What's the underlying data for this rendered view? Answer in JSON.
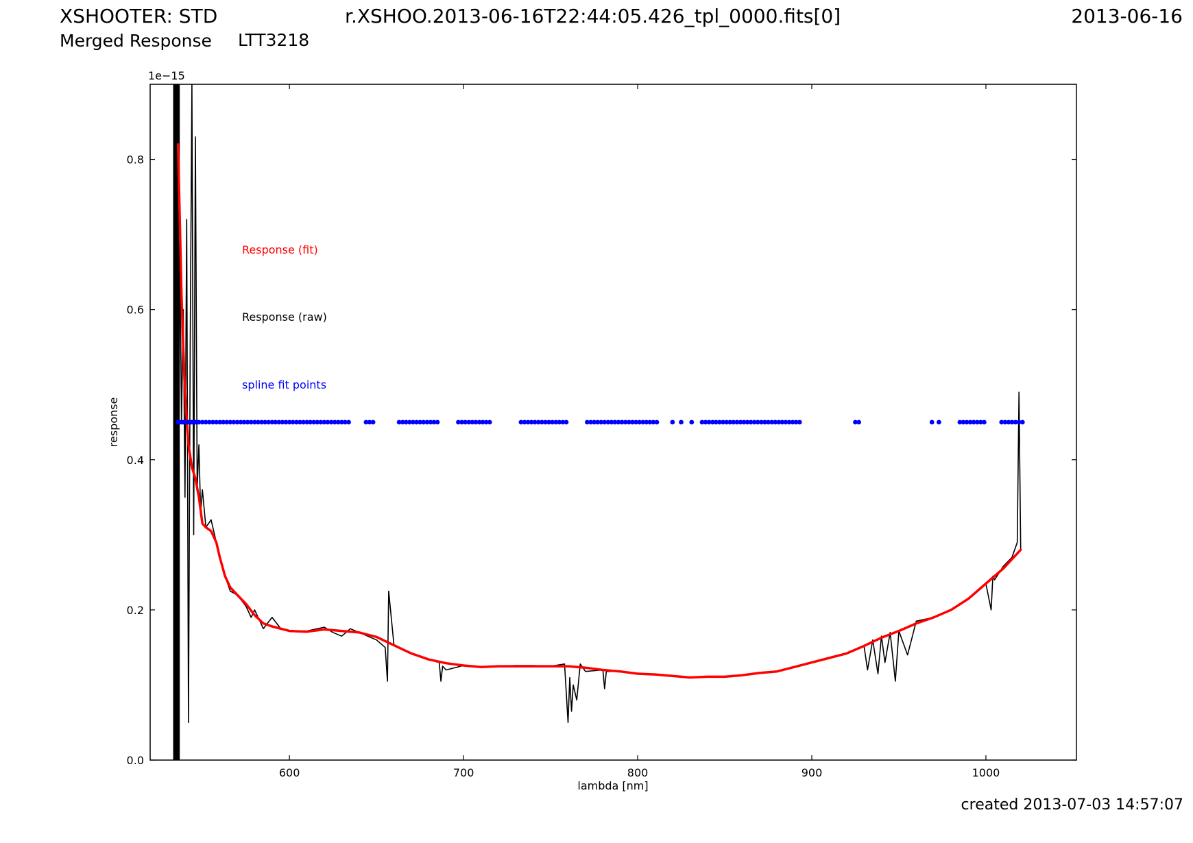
{
  "header": {
    "instrument": "XSHOOTER: STD",
    "filename": "r.XSHOO.2013-06-16T22:44:05.426_tpl_0000.fits[0]",
    "date": "2013-06-16",
    "product": "Merged Response",
    "target": "LTT3218"
  },
  "footer": {
    "created": "created 2013-07-03 14:57:07"
  },
  "chart_data": {
    "type": "line",
    "xlabel": "lambda [nm]",
    "ylabel": "response",
    "y_scale_label": "1e−15",
    "xlim": [
      520,
      1052
    ],
    "ylim": [
      0.0,
      0.9
    ],
    "xticks": [
      600,
      700,
      800,
      900,
      1000
    ],
    "xtick_labels": [
      "600",
      "700",
      "800",
      "900",
      "1000"
    ],
    "yticks": [
      0.0,
      0.2,
      0.4,
      0.6,
      0.8
    ],
    "ytick_labels": [
      "0.0",
      "0.2",
      "0.4",
      "0.6",
      "0.8"
    ],
    "grid": false,
    "legend": [
      {
        "label": "Response (fit)",
        "color": "#ff0000"
      },
      {
        "label": "Response (raw)",
        "color": "#000000"
      },
      {
        "label": "spline fit points",
        "color": "#0000ff"
      }
    ],
    "series": [
      {
        "name": "Response (fit)",
        "color": "#ff0000",
        "x": [
          536,
          537,
          538,
          539,
          540,
          542,
          544,
          546,
          548,
          550,
          552,
          555,
          558,
          560,
          563,
          566,
          570,
          575,
          580,
          585,
          590,
          600,
          610,
          620,
          630,
          640,
          650,
          660,
          670,
          680,
          690,
          700,
          710,
          720,
          730,
          740,
          750,
          760,
          770,
          780,
          790,
          800,
          810,
          820,
          830,
          840,
          850,
          860,
          870,
          880,
          890,
          900,
          910,
          920,
          930,
          940,
          950,
          960,
          970,
          980,
          990,
          1000,
          1010,
          1020
        ],
        "y": [
          0.82,
          0.72,
          0.62,
          0.55,
          0.49,
          0.42,
          0.39,
          0.375,
          0.35,
          0.315,
          0.31,
          0.305,
          0.29,
          0.27,
          0.245,
          0.23,
          0.22,
          0.208,
          0.193,
          0.182,
          0.178,
          0.172,
          0.171,
          0.174,
          0.172,
          0.17,
          0.164,
          0.153,
          0.142,
          0.134,
          0.129,
          0.126,
          0.124,
          0.125,
          0.125,
          0.125,
          0.125,
          0.125,
          0.123,
          0.12,
          0.118,
          0.115,
          0.114,
          0.112,
          0.11,
          0.111,
          0.111,
          0.113,
          0.116,
          0.118,
          0.124,
          0.13,
          0.136,
          0.142,
          0.152,
          0.163,
          0.172,
          0.182,
          0.19,
          0.2,
          0.215,
          0.235,
          0.255,
          0.28
        ]
      },
      {
        "name": "Response (raw)",
        "color": "#000000",
        "x": [
          534,
          535,
          536,
          537,
          538,
          539,
          540,
          541,
          542,
          543,
          544,
          545,
          546,
          547,
          548,
          549,
          550,
          552,
          555,
          558,
          560,
          563,
          566,
          570,
          575,
          578,
          580,
          585,
          590,
          595,
          600,
          610,
          620,
          625,
          630,
          635,
          640,
          650,
          655,
          656.3,
          657,
          660,
          670,
          680,
          686,
          687,
          688,
          690,
          700,
          710,
          720,
          730,
          740,
          750,
          758,
          760,
          761,
          762,
          763,
          765,
          767,
          770,
          780,
          781,
          782,
          790,
          800,
          810,
          820,
          830,
          840,
          850,
          860,
          870,
          880,
          890,
          900,
          910,
          920,
          930,
          932,
          935,
          938,
          940,
          942,
          945,
          948,
          950,
          955,
          960,
          970,
          980,
          990,
          1000,
          1003,
          1004,
          1005,
          1010,
          1015,
          1018,
          1019,
          1020
        ],
        "y": [
          0.0,
          0.9,
          0.1,
          0.7,
          0.45,
          0.6,
          0.35,
          0.72,
          0.05,
          0.55,
          0.9,
          0.3,
          0.83,
          0.36,
          0.42,
          0.33,
          0.36,
          0.31,
          0.32,
          0.29,
          0.27,
          0.245,
          0.225,
          0.22,
          0.205,
          0.19,
          0.2,
          0.175,
          0.19,
          0.175,
          0.172,
          0.172,
          0.177,
          0.17,
          0.165,
          0.175,
          0.17,
          0.16,
          0.15,
          0.105,
          0.225,
          0.154,
          0.142,
          0.134,
          0.13,
          0.105,
          0.125,
          0.12,
          0.126,
          0.124,
          0.125,
          0.126,
          0.126,
          0.125,
          0.128,
          0.05,
          0.11,
          0.065,
          0.1,
          0.08,
          0.128,
          0.118,
          0.12,
          0.095,
          0.118,
          0.118,
          0.115,
          0.114,
          0.112,
          0.11,
          0.111,
          0.111,
          0.113,
          0.116,
          0.118,
          0.124,
          0.13,
          0.136,
          0.142,
          0.152,
          0.12,
          0.16,
          0.115,
          0.165,
          0.13,
          0.17,
          0.105,
          0.172,
          0.14,
          0.185,
          0.19,
          0.2,
          0.215,
          0.235,
          0.2,
          0.245,
          0.24,
          0.258,
          0.27,
          0.29,
          0.49,
          0.28
        ]
      },
      {
        "name": "spline fit points",
        "color": "#0000ff",
        "marker": "circle",
        "y": 0.45,
        "x": [
          536,
          537,
          538,
          539,
          540,
          541,
          542,
          543,
          544,
          545,
          546,
          547,
          548,
          550,
          552,
          554,
          556,
          558,
          560,
          562,
          564,
          566,
          568,
          570,
          572,
          574,
          576,
          578,
          580,
          582,
          584,
          586,
          588,
          590,
          592,
          594,
          596,
          598,
          600,
          602,
          604,
          606,
          608,
          610,
          612,
          614,
          616,
          618,
          620,
          622,
          624,
          626,
          628,
          630,
          632,
          634,
          644,
          646,
          648,
          663,
          665,
          667,
          669,
          671,
          673,
          675,
          677,
          679,
          681,
          683,
          685,
          697,
          699,
          701,
          703,
          705,
          707,
          709,
          711,
          713,
          715,
          733,
          735,
          737,
          739,
          741,
          743,
          745,
          747,
          749,
          751,
          753,
          755,
          757,
          759,
          771,
          773,
          775,
          777,
          779,
          781,
          783,
          785,
          787,
          789,
          791,
          793,
          795,
          797,
          799,
          801,
          803,
          805,
          807,
          809,
          811,
          820,
          825,
          831,
          837,
          839,
          841,
          843,
          845,
          847,
          849,
          851,
          853,
          855,
          857,
          859,
          861,
          863,
          865,
          867,
          869,
          871,
          873,
          875,
          877,
          879,
          881,
          883,
          885,
          887,
          889,
          891,
          893,
          925,
          927,
          969,
          973,
          985,
          987,
          989,
          991,
          993,
          995,
          997,
          999,
          1009,
          1011,
          1013,
          1015,
          1017,
          1019,
          1021
        ]
      }
    ]
  }
}
